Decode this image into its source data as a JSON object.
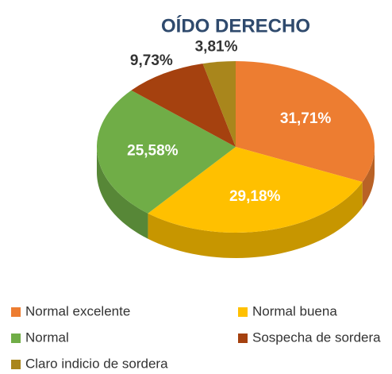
{
  "chart_data": {
    "type": "pie",
    "title": "OÍDO DERECHO",
    "categories": [
      "Normal excelente",
      "Normal buena",
      "Normal",
      "Sospecha de sordera",
      "Claro indicio de sordera"
    ],
    "values": [
      31.71,
      29.18,
      25.58,
      9.73,
      3.81
    ],
    "value_labels": [
      "31,71%",
      "29,18%",
      "25,58%",
      "9,73%",
      "3,81%"
    ],
    "colors": [
      "#ed7d31",
      "#ffc000",
      "#70ad47",
      "#a5410f",
      "#a9861c"
    ],
    "legend": "bottom"
  }
}
